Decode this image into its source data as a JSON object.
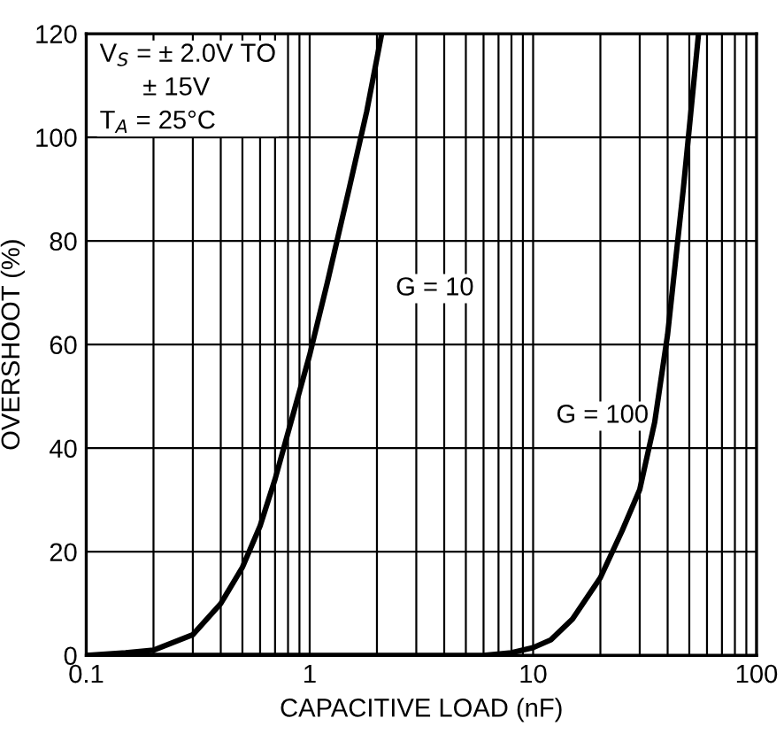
{
  "chart_data": {
    "type": "line",
    "xlabel": "CAPACITIVE LOAD (nF)",
    "ylabel": "OVERSHOOT (%)",
    "log": "x",
    "grid": true,
    "line_style": "solid",
    "marker": "none",
    "xlim": [
      0.1,
      100
    ],
    "xticks": [
      0.1,
      1,
      10,
      100
    ],
    "ylim": [
      0,
      120
    ],
    "yticks": [
      0,
      20,
      40,
      60,
      80,
      100,
      120
    ],
    "series": [
      {
        "color": "#000000",
        "x": [
          0.1,
          0.15,
          0.2,
          0.3,
          0.4,
          0.5,
          0.6,
          0.7,
          0.8,
          1,
          1.2,
          1.5,
          1.8,
          2.1
        ],
        "values": [
          0,
          0.5,
          1,
          4,
          10,
          17,
          25,
          34,
          43,
          58,
          72,
          90,
          105,
          120
        ]
      },
      {
        "color": "#000000",
        "x": [
          0.1,
          1,
          6,
          8,
          10,
          12,
          15,
          20,
          25,
          30,
          35,
          40,
          47,
          55
        ],
        "values": [
          0,
          0,
          0,
          0.5,
          1.5,
          3,
          7,
          15,
          24,
          32,
          45,
          62,
          90,
          120
        ]
      }
    ],
    "annotations": [
      "G = 10",
      "G = 100",
      "V$_{S}$ = ± 2.0V TO\n      ± 15V\nT$_{A}$ = 25°C"
    ]
  }
}
